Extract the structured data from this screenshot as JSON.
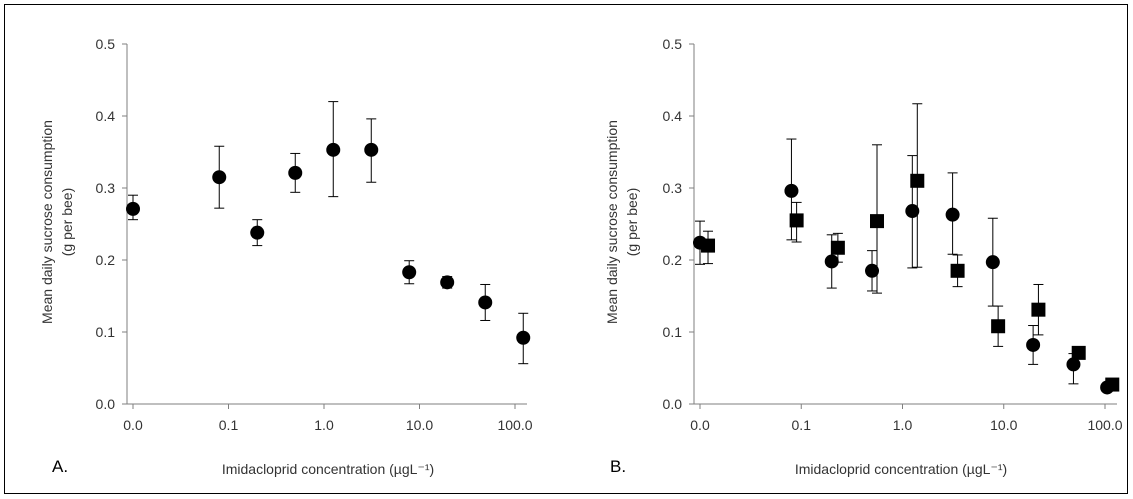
{
  "chart_data": [
    {
      "type": "scatter",
      "panel_label": "A.",
      "xlabel": "Imidacloprid concentration (µgL⁻¹)",
      "ylabel_line1": "Mean daily sucrose consumption",
      "ylabel_line2": "(g per bee)",
      "x_scale": "log",
      "x_tick_labels": [
        "0.0",
        "0.1",
        "1.0",
        "10.0",
        "100.0"
      ],
      "x_tick_values": [
        0.01,
        0.1,
        1,
        10,
        100
      ],
      "ylim": [
        0,
        0.5
      ],
      "y_tick_labels": [
        "0.0",
        "0.1",
        "0.2",
        "0.3",
        "0.4",
        "0.5"
      ],
      "y_tick_values": [
        0,
        0.1,
        0.2,
        0.3,
        0.4,
        0.5
      ],
      "grid": false,
      "series": [
        {
          "marker": "circle",
          "color": "#000000",
          "points": [
            {
              "x": 0.01,
              "y": 0.271,
              "err_up": 0.019,
              "err_down": 0.015
            },
            {
              "x": 0.08,
              "y": 0.315,
              "err_up": 0.043,
              "err_down": 0.043
            },
            {
              "x": 0.2,
              "y": 0.238,
              "err_up": 0.018,
              "err_down": 0.018
            },
            {
              "x": 0.5,
              "y": 0.321,
              "err_up": 0.027,
              "err_down": 0.027
            },
            {
              "x": 1.25,
              "y": 0.353,
              "err_up": 0.067,
              "err_down": 0.065
            },
            {
              "x": 3.125,
              "y": 0.353,
              "err_up": 0.043,
              "err_down": 0.045
            },
            {
              "x": 7.8,
              "y": 0.183,
              "err_up": 0.016,
              "err_down": 0.016
            },
            {
              "x": 19.5,
              "y": 0.169,
              "err_up": 0.008,
              "err_down": 0.008
            },
            {
              "x": 48.8,
              "y": 0.141,
              "err_up": 0.025,
              "err_down": 0.025
            },
            {
              "x": 122,
              "y": 0.092,
              "err_up": 0.034,
              "err_down": 0.036
            }
          ]
        }
      ]
    },
    {
      "type": "scatter",
      "panel_label": "B.",
      "xlabel": "Imidacloprid concentration (µgL⁻¹)",
      "ylabel_line1": "Mean daily sucrose consumption",
      "ylabel_line2": "(g per bee)",
      "x_scale": "log",
      "x_tick_labels": [
        "0.0",
        "0.1",
        "1.0",
        "10.0",
        "100.0"
      ],
      "x_tick_values": [
        0.01,
        0.1,
        1,
        10,
        100
      ],
      "ylim": [
        0,
        0.5
      ],
      "y_tick_labels": [
        "0.0",
        "0.1",
        "0.2",
        "0.3",
        "0.4",
        "0.5"
      ],
      "y_tick_values": [
        0,
        0.1,
        0.2,
        0.3,
        0.4,
        0.5
      ],
      "grid": false,
      "series": [
        {
          "marker": "circle",
          "color": "#000000",
          "points": [
            {
              "x": 0.01,
              "y": 0.224,
              "err_up": 0.03,
              "err_down": 0.03
            },
            {
              "x": 0.08,
              "y": 0.296,
              "err_up": 0.072,
              "err_down": 0.068
            },
            {
              "x": 0.2,
              "y": 0.198,
              "err_up": 0.037,
              "err_down": 0.037
            },
            {
              "x": 0.5,
              "y": 0.185,
              "err_up": 0.028,
              "err_down": 0.028
            },
            {
              "x": 1.25,
              "y": 0.268,
              "err_up": 0.077,
              "err_down": 0.079
            },
            {
              "x": 3.125,
              "y": 0.263,
              "err_up": 0.058,
              "err_down": 0.055
            },
            {
              "x": 7.8,
              "y": 0.197,
              "err_up": 0.061,
              "err_down": 0.061
            },
            {
              "x": 19.5,
              "y": 0.082,
              "err_up": 0.027,
              "err_down": 0.027
            },
            {
              "x": 48.8,
              "y": 0.055,
              "err_up": 0.015,
              "err_down": 0.027
            },
            {
              "x": 105,
              "y": 0.023,
              "err_up": 0.005,
              "err_down": 0.005
            }
          ]
        },
        {
          "marker": "square",
          "color": "#000000",
          "points": [
            {
              "x": 0.012,
              "y": 0.22,
              "err_up": 0.02,
              "err_down": 0.025
            },
            {
              "x": 0.09,
              "y": 0.255,
              "err_up": 0.025,
              "err_down": 0.03
            },
            {
              "x": 0.23,
              "y": 0.217,
              "err_up": 0.02,
              "err_down": 0.02
            },
            {
              "x": 0.56,
              "y": 0.254,
              "err_up": 0.106,
              "err_down": 0.1
            },
            {
              "x": 1.4,
              "y": 0.31,
              "err_up": 0.107,
              "err_down": 0.12
            },
            {
              "x": 3.5,
              "y": 0.185,
              "err_up": 0.022,
              "err_down": 0.022
            },
            {
              "x": 8.8,
              "y": 0.108,
              "err_up": 0.028,
              "err_down": 0.028
            },
            {
              "x": 22,
              "y": 0.131,
              "err_up": 0.035,
              "err_down": 0.035
            },
            {
              "x": 55,
              "y": 0.071,
              "err_up": 0.008,
              "err_down": 0.008
            },
            {
              "x": 118,
              "y": 0.027,
              "err_up": 0.008,
              "err_down": 0.008
            }
          ]
        }
      ]
    }
  ]
}
